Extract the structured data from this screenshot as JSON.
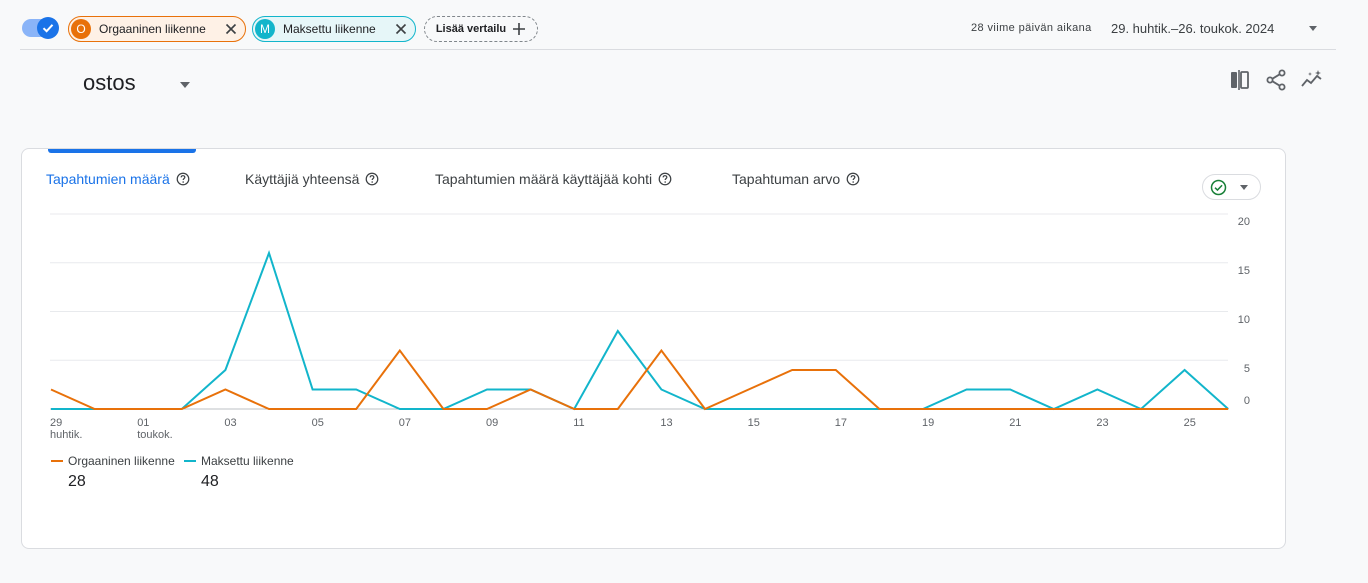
{
  "comparisons": {
    "organic": {
      "letter": "O",
      "label": "Orgaaninen liikenne",
      "color": "#e8710a"
    },
    "paid": {
      "letter": "M",
      "label": "Maksettu liikenne",
      "color": "#12b5cb"
    },
    "add_label": "Lisää vertailu"
  },
  "date_range": {
    "label": "28 viime päivän aikana",
    "value": "29. huhtik.–26. toukok. 2024"
  },
  "title": "ostos",
  "toolbar_icons": [
    "compare-icon",
    "share-icon",
    "insights-icon"
  ],
  "tabs": [
    {
      "label": "Tapahtumien määrä",
      "active": true
    },
    {
      "label": "Käyttäjiä yhteensä",
      "active": false
    },
    {
      "label": "Tapahtumien määrä käyttäjää kohti",
      "active": false
    },
    {
      "label": "Tapahtuman arvo",
      "active": false
    }
  ],
  "chart_data": {
    "type": "line",
    "x": [
      "29.4.",
      "30.4.",
      "1.5.",
      "2.5.",
      "3.5.",
      "4.5.",
      "5.5.",
      "6.5.",
      "7.5.",
      "8.5.",
      "9.5.",
      "10.5.",
      "11.5.",
      "12.5.",
      "13.5.",
      "14.5.",
      "15.5.",
      "16.5.",
      "17.5.",
      "18.5.",
      "19.5.",
      "20.5.",
      "21.5.",
      "22.5.",
      "23.5.",
      "24.5.",
      "25.5.",
      "26.5."
    ],
    "x_tick_labels": [
      {
        "day": "29",
        "month": "huhtik."
      },
      {
        "day": "01",
        "month": "toukok."
      },
      {
        "day": "03"
      },
      {
        "day": "05"
      },
      {
        "day": "07"
      },
      {
        "day": "09"
      },
      {
        "day": "11"
      },
      {
        "day": "13"
      },
      {
        "day": "15"
      },
      {
        "day": "17"
      },
      {
        "day": "19"
      },
      {
        "day": "21"
      },
      {
        "day": "23"
      },
      {
        "day": "25"
      }
    ],
    "y_ticks": [
      0,
      5,
      10,
      15,
      20
    ],
    "ylim": [
      0,
      20
    ],
    "grid": true,
    "legend_position": "bottom-left",
    "series": [
      {
        "name": "Orgaaninen liikenne",
        "color": "#e8710a",
        "total": "28",
        "values": [
          2,
          0,
          0,
          0,
          2,
          0,
          0,
          0,
          6,
          0,
          0,
          2,
          0,
          0,
          6,
          0,
          2,
          4,
          4,
          0,
          0,
          0,
          0,
          0,
          0,
          0,
          0,
          0
        ]
      },
      {
        "name": "Maksettu liikenne",
        "color": "#12b5cb",
        "total": "48",
        "values": [
          0,
          0,
          0,
          0,
          4,
          16,
          2,
          2,
          0,
          0,
          2,
          2,
          0,
          8,
          2,
          0,
          0,
          0,
          0,
          0,
          0,
          2,
          2,
          0,
          2,
          0,
          4,
          0
        ]
      }
    ]
  }
}
